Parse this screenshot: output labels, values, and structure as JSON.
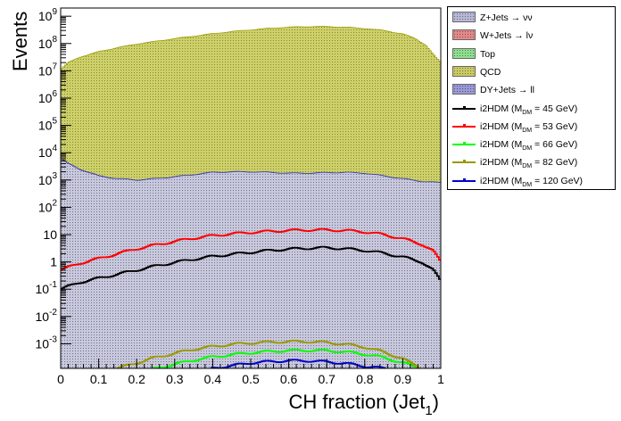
{
  "chart_data": {
    "type": "histogram-stack-log",
    "xlabel": "CH fraction (Jet",
    "xlabel_sub": "1",
    "xlabel_close": ")",
    "ylabel": "Events",
    "xlim": [
      0,
      1
    ],
    "ylim_log": [
      -3.9,
      9.3
    ],
    "x_ticks": [
      "0",
      "0.1",
      "0.2",
      "0.3",
      "0.4",
      "0.5",
      "0.6",
      "0.7",
      "0.8",
      "0.9",
      "1"
    ],
    "y_ticks": [
      {
        "base": "10",
        "exp": "-3",
        "value": -3
      },
      {
        "base": "10",
        "exp": "-2",
        "value": -2
      },
      {
        "base": "10",
        "exp": "-1",
        "value": -1
      },
      {
        "base": "1",
        "exp": "",
        "value": 0
      },
      {
        "base": "10",
        "exp": "",
        "value": 1
      },
      {
        "base": "10",
        "exp": "2",
        "value": 2
      },
      {
        "base": "10",
        "exp": "3",
        "value": 3
      },
      {
        "base": "10",
        "exp": "4",
        "value": 4
      },
      {
        "base": "10",
        "exp": "5",
        "value": 5
      },
      {
        "base": "10",
        "exp": "6",
        "value": 6
      },
      {
        "base": "10",
        "exp": "7",
        "value": 7
      },
      {
        "base": "10",
        "exp": "8",
        "value": 8
      },
      {
        "base": "10",
        "exp": "9",
        "value": 9
      }
    ],
    "stack_total_log10": {
      "x": [
        0.0,
        0.02,
        0.05,
        0.1,
        0.15,
        0.2,
        0.25,
        0.3,
        0.35,
        0.4,
        0.45,
        0.5,
        0.55,
        0.6,
        0.65,
        0.7,
        0.75,
        0.8,
        0.85,
        0.9,
        0.93,
        0.96,
        0.98,
        1.0
      ],
      "y": [
        7.05,
        7.3,
        7.5,
        7.7,
        7.85,
        7.98,
        8.08,
        8.18,
        8.27,
        8.36,
        8.44,
        8.5,
        8.56,
        8.6,
        8.62,
        8.62,
        8.6,
        8.55,
        8.48,
        8.35,
        8.2,
        7.95,
        7.6,
        7.3
      ]
    },
    "dy_log10": {
      "x": [
        0,
        0.02,
        0.05,
        0.1,
        0.15,
        0.2,
        0.25,
        0.3,
        0.35,
        0.4,
        0.45,
        0.5,
        0.55,
        0.6,
        0.65,
        0.7,
        0.75,
        0.8,
        0.85,
        0.9,
        0.95,
        1.0
      ],
      "y": [
        3.8,
        3.6,
        3.4,
        3.15,
        3.05,
        3.0,
        3.05,
        3.12,
        3.2,
        3.28,
        3.3,
        3.3,
        3.28,
        3.25,
        3.25,
        3.27,
        3.28,
        3.25,
        3.15,
        3.05,
        2.95,
        2.9
      ]
    },
    "series": [
      {
        "name": "i2HDM (M",
        "sub": "DM",
        "tail": " =  45 GeV)",
        "color": "#000000",
        "x": [
          0,
          0.02,
          0.05,
          0.1,
          0.15,
          0.2,
          0.25,
          0.3,
          0.35,
          0.4,
          0.45,
          0.5,
          0.55,
          0.6,
          0.65,
          0.7,
          0.75,
          0.8,
          0.85,
          0.9,
          0.95,
          0.98,
          1.0
        ],
        "y": [
          -1.0,
          -0.9,
          -0.75,
          -0.6,
          -0.45,
          -0.3,
          -0.15,
          -0.02,
          0.1,
          0.2,
          0.28,
          0.35,
          0.42,
          0.47,
          0.5,
          0.52,
          0.48,
          0.42,
          0.32,
          0.18,
          0.0,
          -0.3,
          -0.7
        ]
      },
      {
        "name": "i2HDM (M",
        "sub": "DM",
        "tail": " =  53 GeV)",
        "color": "#ff0000",
        "x": [
          0,
          0.02,
          0.05,
          0.1,
          0.15,
          0.2,
          0.25,
          0.3,
          0.35,
          0.4,
          0.45,
          0.5,
          0.55,
          0.6,
          0.65,
          0.7,
          0.75,
          0.8,
          0.85,
          0.9,
          0.95,
          0.98,
          1.0
        ],
        "y": [
          -0.3,
          -0.2,
          -0.05,
          0.12,
          0.3,
          0.48,
          0.62,
          0.75,
          0.87,
          0.96,
          1.03,
          1.08,
          1.12,
          1.15,
          1.17,
          1.17,
          1.15,
          1.1,
          1.0,
          0.85,
          0.65,
          0.4,
          0.0
        ]
      },
      {
        "name": "i2HDM (M",
        "sub": "DM",
        "tail": " =  66 GeV)",
        "color": "#00ff00",
        "x": [
          0.25,
          0.3,
          0.35,
          0.4,
          0.45,
          0.5,
          0.55,
          0.6,
          0.65,
          0.7,
          0.75,
          0.8,
          0.85,
          0.9,
          0.95
        ],
        "y": [
          -3.9,
          -3.75,
          -3.6,
          -3.48,
          -3.4,
          -3.33,
          -3.28,
          -3.25,
          -3.24,
          -3.25,
          -3.3,
          -3.38,
          -3.5,
          -3.7,
          -3.9
        ]
      },
      {
        "name": "i2HDM (M",
        "sub": "DM",
        "tail": " =  82 GeV)",
        "color": "#999900",
        "x": [
          0.15,
          0.2,
          0.25,
          0.3,
          0.35,
          0.4,
          0.45,
          0.5,
          0.55,
          0.6,
          0.65,
          0.7,
          0.75,
          0.8,
          0.85,
          0.9,
          0.95
        ],
        "y": [
          -3.9,
          -3.7,
          -3.5,
          -3.35,
          -3.2,
          -3.1,
          -3.02,
          -2.97,
          -2.94,
          -2.92,
          -2.92,
          -2.95,
          -3.02,
          -3.12,
          -3.3,
          -3.55,
          -3.9
        ]
      },
      {
        "name": "i2HDM (M",
        "sub": "DM",
        "tail": " = 120 GeV)",
        "color": "#0000cc",
        "x": [
          0.4,
          0.45,
          0.5,
          0.55,
          0.6,
          0.65,
          0.7,
          0.75,
          0.8,
          0.85
        ],
        "y": [
          -3.9,
          -3.8,
          -3.7,
          -3.65,
          -3.62,
          -3.62,
          -3.66,
          -3.72,
          -3.82,
          -3.9
        ]
      }
    ],
    "legend": [
      {
        "kind": "fill",
        "label": "Z+Jets → νν",
        "fill": "#b8b8d8"
      },
      {
        "kind": "fill",
        "label": "W+Jets → lν",
        "fill": "#e38a8a"
      },
      {
        "kind": "fill",
        "label": "Top",
        "fill": "#8fe08f"
      },
      {
        "kind": "fill",
        "label": "QCD",
        "fill": "#cccc66"
      },
      {
        "kind": "fill",
        "label": "DY+Jets → ll",
        "fill": "#9a9ad8"
      }
    ]
  }
}
